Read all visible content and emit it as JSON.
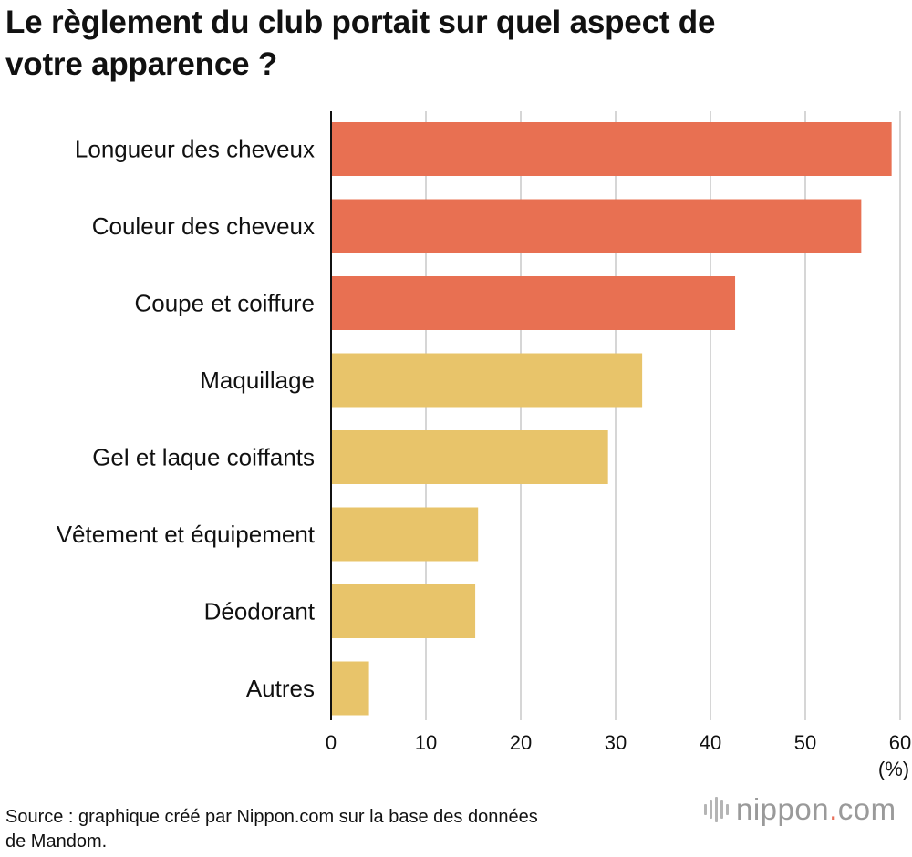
{
  "title": {
    "line1": "Le règlement du club portait sur quel aspect de",
    "line2": "votre apparence ?"
  },
  "chart_data": {
    "type": "bar",
    "orientation": "horizontal",
    "title": "Le règlement du club portait sur quel aspect de votre apparence ?",
    "categories": [
      "Longueur des cheveux",
      "Couleur des cheveux",
      "Coupe et coiffure",
      "Maquillage",
      "Gel et laque coiffants",
      "Vêtement et équipement",
      "Déodorant",
      "Autres"
    ],
    "values": [
      59.1,
      55.9,
      42.6,
      32.8,
      29.2,
      15.5,
      15.2,
      4.0
    ],
    "bar_colors": [
      "#e87052",
      "#e87052",
      "#e87052",
      "#e8c46a",
      "#e8c46a",
      "#e8c46a",
      "#e8c46a",
      "#e8c46a"
    ],
    "xlim": [
      0,
      60
    ],
    "xticks": [
      "0",
      "10",
      "20",
      "30",
      "40",
      "50",
      "60"
    ],
    "xlabel": "(%)",
    "ylabel": "",
    "grid": true
  },
  "source": {
    "line1": "Source : graphique créé par Nippon.com sur la base des données",
    "line2": "de Mandom."
  },
  "logo": {
    "name": "nippon",
    "dot": ".",
    "tld": "com"
  },
  "colors": {
    "accent": "#e87052",
    "secondary": "#e8c46a",
    "grid": "#c8c8c8",
    "axis": "#111111"
  }
}
